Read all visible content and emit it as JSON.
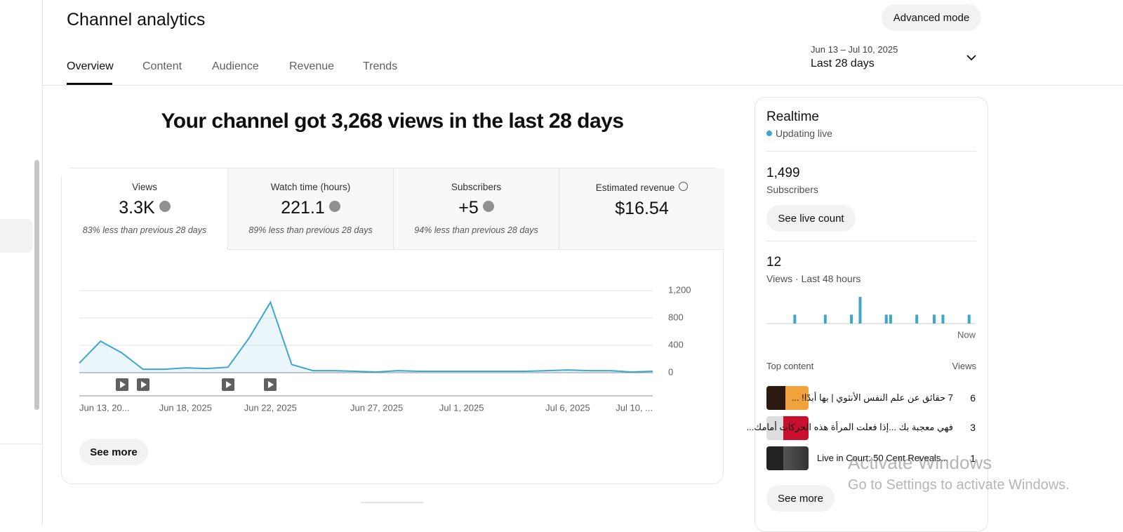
{
  "header": {
    "title": "Channel analytics",
    "advanced_mode": "Advanced mode"
  },
  "tabs": [
    "Overview",
    "Content",
    "Audience",
    "Revenue",
    "Trends"
  ],
  "date_range": {
    "dates": "Jun 13 – Jul 10, 2025",
    "period": "Last 28 days"
  },
  "headline": "Your channel got 3,268 views in the last 28 days",
  "metrics": [
    {
      "label": "Views",
      "value": "3.3K",
      "note": "83% less than previous 28 days"
    },
    {
      "label": "Watch time (hours)",
      "value": "221.1",
      "note": "89% less than previous 28 days"
    },
    {
      "label": "Subscribers",
      "value": "+5",
      "note": "94% less than previous 28 days"
    },
    {
      "label": "Estimated revenue",
      "value": "$16.54"
    }
  ],
  "chart_data": {
    "type": "line",
    "color": "#3ea6cb",
    "categories": [
      "Jun 13, 20...",
      null,
      null,
      null,
      null,
      "Jun 18, 2025",
      null,
      null,
      null,
      "Jun 22, 2025",
      null,
      null,
      null,
      null,
      "Jun 27, 2025",
      null,
      null,
      null,
      "Jul 1, 2025",
      null,
      null,
      null,
      null,
      "Jul 6, 2025",
      null,
      null,
      null,
      "Jul 10, ..."
    ],
    "values": [
      140,
      460,
      290,
      50,
      50,
      70,
      60,
      80,
      510,
      1030,
      120,
      30,
      30,
      20,
      10,
      30,
      20,
      20,
      20,
      20,
      20,
      20,
      30,
      40,
      30,
      30,
      10,
      20
    ],
    "ylim": [
      0,
      1200
    ],
    "yticks": [
      0,
      400,
      800,
      {
        "value": 1200,
        "label": "1,200"
      }
    ],
    "grid": true
  },
  "see_more_chart": "See more",
  "realtime": {
    "title": "Realtime",
    "status": "Updating live",
    "subscribers": {
      "value": "1,499",
      "label": "Subscribers"
    },
    "live_count_button": "See live count",
    "views": {
      "value": "12",
      "label": "Views · Last 48 hours"
    },
    "chart_data": {
      "type": "bar",
      "color": "#3ea6cb",
      "values": [
        0,
        0,
        0,
        0,
        0,
        0,
        1,
        0,
        0,
        0,
        0,
        0,
        0,
        1,
        0,
        0,
        0,
        0,
        0,
        1,
        0,
        3,
        0,
        0,
        0,
        0,
        0,
        1,
        1,
        0,
        0,
        0,
        0,
        0,
        1,
        0,
        0,
        0,
        1,
        0,
        1,
        0,
        0,
        0,
        0,
        0,
        1,
        0
      ],
      "end_label": "Now"
    },
    "top_content": {
      "header": "Top content",
      "views_header": "Views",
      "rows": [
        {
          "title": "7 حقائق عن علم النفس الأنثوي | بها أبدًا! ...",
          "views": 6
        },
        {
          "title": "فهي معجبة بك ...إذا فعلت المرأة هذه الحركات أمامك...",
          "views": 3
        },
        {
          "title": "Live in Court: 50 Cent Reveals...",
          "views": 1
        }
      ]
    },
    "see_more": "See more"
  },
  "watermark": {
    "title": "Activate Windows",
    "subtitle": "Go to Settings to activate Windows."
  }
}
